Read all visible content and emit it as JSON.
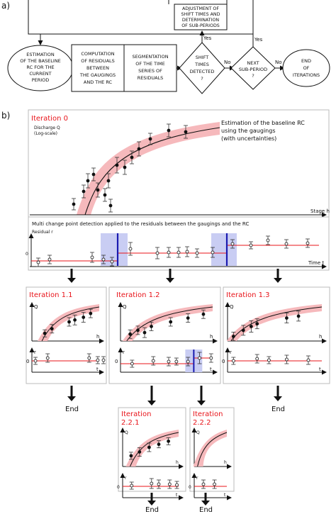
{
  "panel_a": {
    "label": "a)",
    "box_estimation": [
      "ESTIMATION",
      "OF THE BASELINE",
      "RC FOR THE",
      "CURRENT",
      "PERIOD"
    ],
    "box_computation": [
      "COMPUTATION",
      "OF RESIDUALS",
      "BETWEEN",
      "THE GAUGINGS",
      "AND THE RC"
    ],
    "box_segmentation": [
      "SEGMENTATION",
      "OF THE TIME",
      "SERIES OF",
      "RESIDUALS"
    ],
    "diamond_shift": [
      "SHIFT",
      "TIMES",
      "DETECTED",
      "?"
    ],
    "diamond_next": [
      "NEXT",
      "SUB-PERIOD",
      "?"
    ],
    "box_adjustment": [
      "ADJUSTMENT OF",
      "SHIFT TIMES AND",
      "DETERMINATION",
      "OF SUB-PERIODS"
    ],
    "ellipse_end": [
      "END",
      "OF",
      "ITERATIONS"
    ],
    "yes1": "Yes",
    "yes2": "Yes",
    "no1": "No",
    "no2": "No"
  },
  "panel_b": {
    "label": "b)",
    "iteration0": {
      "title": "Iteration 0",
      "ylabel": [
        "Discharge Q",
        "(Log-scale)"
      ],
      "note": [
        "Estimation of the baseline RC",
        "using the gaugings",
        "(with uncertainties)"
      ],
      "xlabel": "Stage h",
      "mcp_title": "Multi change point detection applied to the residuals between the gaugings and the RC",
      "residual_label": "Residual r",
      "zero": "0",
      "time_label": "Time t"
    },
    "iter_1_1": {
      "title": "Iteration 1.1",
      "q": "Q",
      "h": "h",
      "r": "r",
      "zero": "0",
      "t": "t"
    },
    "iter_1_2": {
      "title": "Iteration 1.2",
      "q": "Q",
      "h": "h",
      "r": "r",
      "zero": "0",
      "t": "t"
    },
    "iter_1_3": {
      "title": "Iteration 1.3",
      "q": "Q",
      "h": "h",
      "r": "r",
      "zero": "0",
      "t": "t"
    },
    "iter_2_2_1": {
      "title": [
        "Iteration",
        "2.2.1"
      ],
      "q": "Q",
      "h": "h",
      "r": "r",
      "zero": "0",
      "t": "t"
    },
    "iter_2_2_2": {
      "title": [
        "Iteration",
        "2.2.2"
      ],
      "q": "Q",
      "h": "h",
      "r": "r",
      "zero": "0",
      "t": "t"
    },
    "end_labels": [
      "End",
      "End",
      "End",
      "End"
    ]
  },
  "colors": {
    "iteration_title": "#e8141a",
    "band": "#f6b9bc",
    "segment": "#e8141a",
    "shift_band": "#c9cdf3",
    "shift_line": "#1a1ab0"
  }
}
